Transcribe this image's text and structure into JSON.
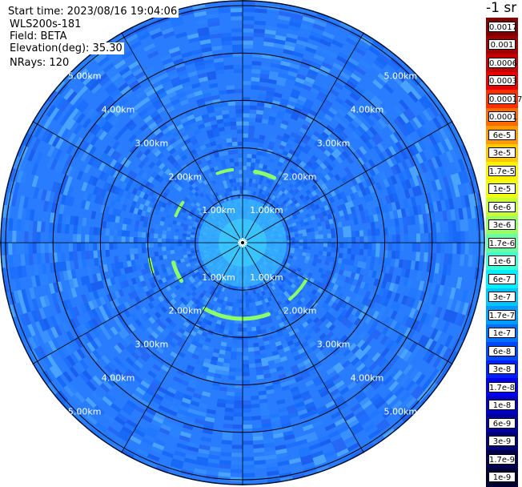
{
  "info": {
    "start_time": "Start time: 2023/08/16 19:04:06",
    "instrument": "WLS200s-181",
    "field": "Field: BETA",
    "elevation": "Elevation(deg): 35.30",
    "nrays": "NRays: 120"
  },
  "colorbar": {
    "unit_label": "-1 sr",
    "ticks": [
      "0.0017",
      "0.001",
      "0.0006",
      "0.0003",
      "0.00017",
      "0.0001",
      "6e-5",
      "3e-5",
      "1.7e-5",
      "1e-5",
      "6e-6",
      "3e-6",
      "1.7e-6",
      "1e-6",
      "6e-7",
      "3e-7",
      "1.7e-7",
      "1e-7",
      "6e-8",
      "3e-8",
      "1.7e-8",
      "1e-8",
      "6e-9",
      "3e-9",
      "1.7e-9",
      "1e-9"
    ],
    "colors": [
      "#7f0000",
      "#a00000",
      "#c40000",
      "#e80000",
      "#ff3000",
      "#ff6a00",
      "#ff9a00",
      "#ffc800",
      "#ffef00",
      "#f0ff10",
      "#c8ff36",
      "#9aff64",
      "#6affa0",
      "#3cffd6",
      "#00f0ff",
      "#00c4ff",
      "#009cff",
      "#0070ff",
      "#0048ff",
      "#0020ff",
      "#0000ee",
      "#0000c0",
      "#00009a",
      "#000074",
      "#00004e",
      "#000030"
    ]
  },
  "range_labels": {
    "upper": [
      "5.00km",
      "4.00km",
      "3.00km",
      "2.00km",
      "1.00km"
    ],
    "lower": [
      "1.00km",
      "2.00km",
      "3.00km",
      "4.00km",
      "5.00km"
    ]
  },
  "palette": {
    "background_blue": "#1f6fff",
    "ring_line": "#000000",
    "feature_green": "#8aff68"
  },
  "chart_data": {
    "type": "ppi_polar",
    "field": "BETA",
    "elevation_deg": 35.3,
    "n_rays": 120,
    "range_rings_km": [
      1,
      2,
      3,
      4,
      5
    ],
    "spokes_deg": [
      0,
      30,
      60,
      90,
      120,
      150,
      180,
      210,
      240,
      270,
      300,
      330
    ]
  }
}
